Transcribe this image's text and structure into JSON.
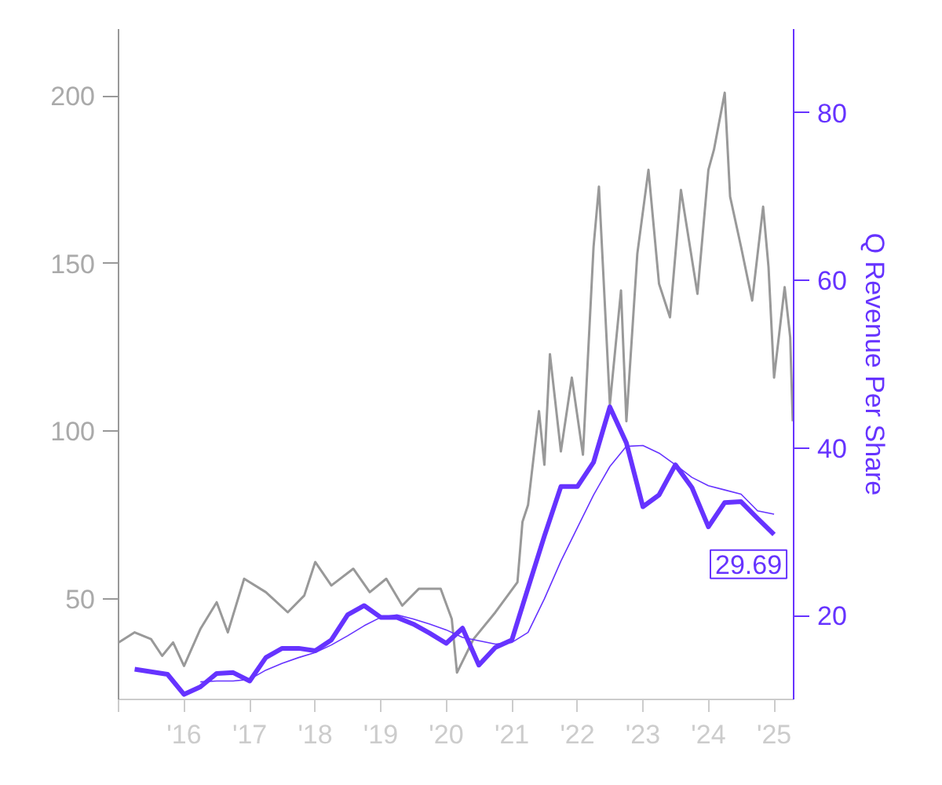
{
  "chart_data": {
    "type": "line",
    "y2label": "Q Revenue Per Share",
    "xlim": [
      "2015-01-01",
      "2025-04-20"
    ],
    "xticks": [
      {
        "value": "2015-01-01",
        "label": null
      },
      {
        "value": "2016-01-01",
        "label": "'16"
      },
      {
        "value": "2017-01-01",
        "label": "'17"
      },
      {
        "value": "2018-01-01",
        "label": "'18"
      },
      {
        "value": "2019-01-01",
        "label": "'19"
      },
      {
        "value": "2020-01-01",
        "label": "'20"
      },
      {
        "value": "2021-01-01",
        "label": "'21"
      },
      {
        "value": "2022-01-01",
        "label": "'22"
      },
      {
        "value": "2023-01-01",
        "label": "'23"
      },
      {
        "value": "2024-01-01",
        "label": "'24"
      },
      {
        "value": "2025-01-01",
        "label": "'25"
      }
    ],
    "ylim": [
      20,
      220
    ],
    "yticks": [
      50,
      100,
      150,
      200
    ],
    "y2lim": [
      10,
      90
    ],
    "y2ticks": [
      20,
      40,
      60,
      80
    ],
    "grid": false,
    "series": [
      {
        "color": "#999999",
        "x": [
          "2015-01",
          "2015-04",
          "2015-07",
          "2015-09",
          "2015-11",
          "2016-01",
          "2016-04",
          "2016-07",
          "2016-09",
          "2016-12",
          "2017-04",
          "2017-08",
          "2017-11",
          "2018-01",
          "2018-04",
          "2018-08",
          "2018-11",
          "2019-02",
          "2019-05",
          "2019-08",
          "2019-12",
          "2020-02",
          "2020-03",
          "2020-06",
          "2020-10",
          "2021-02",
          "2021-03",
          "2021-04",
          "2021-06",
          "2021-07",
          "2021-08",
          "2021-10",
          "2021-12",
          "2022-02",
          "2022-04",
          "2022-05",
          "2022-07",
          "2022-09",
          "2022-10",
          "2022-12",
          "2023-02",
          "2023-04",
          "2023-06",
          "2023-08",
          "2023-11",
          "2024-01",
          "2024-02",
          "2024-04",
          "2024-05",
          "2024-07",
          "2024-09",
          "2024-11",
          "2024-12",
          "2025-01",
          "2025-03",
          "2025-04-01",
          "2025-04-15"
        ],
        "values": [
          37,
          40,
          38,
          33,
          37,
          30,
          41,
          49,
          40,
          56,
          52,
          46,
          51,
          61,
          54,
          59,
          52,
          56,
          48,
          53,
          53,
          44,
          28,
          38,
          46,
          55,
          73,
          78,
          106,
          90,
          123,
          94,
          116,
          93,
          155,
          173,
          108,
          142,
          103,
          153,
          178,
          144,
          134,
          172,
          141,
          178,
          184,
          201,
          170,
          155,
          139,
          167,
          149,
          116,
          143,
          128,
          103
        ]
      },
      {
        "color": "#6633ff",
        "axis": "y2",
        "x": [
          "2015-04",
          "2015-07",
          "2015-10",
          "2016-01",
          "2016-04",
          "2016-07",
          "2016-10",
          "2017-01",
          "2017-04",
          "2017-07",
          "2017-10",
          "2018-01",
          "2018-04",
          "2018-07",
          "2018-10",
          "2019-01",
          "2019-04",
          "2019-07",
          "2019-10",
          "2020-01",
          "2020-04",
          "2020-07",
          "2020-10",
          "2021-01",
          "2021-04",
          "2021-07",
          "2021-10",
          "2022-01",
          "2022-04",
          "2022-07",
          "2022-10",
          "2023-01",
          "2023-04",
          "2023-07",
          "2023-10",
          "2024-01",
          "2024-04",
          "2024-07",
          "2024-10",
          "2025-01"
        ],
        "values": [
          13.6,
          13.3,
          13.0,
          10.6,
          11.5,
          13.1,
          13.2,
          12.2,
          15.0,
          16.1,
          16.1,
          15.8,
          17.1,
          20.1,
          21.2,
          19.8,
          19.8,
          19.0,
          17.9,
          16.7,
          18.5,
          14.1,
          16.2,
          17.1,
          23.3,
          29.5,
          35.4,
          35.4,
          38.3,
          44.9,
          40.6,
          33.0,
          34.4,
          38.0,
          35.3,
          30.6,
          33.5,
          33.6,
          31.6,
          29.69
        ]
      },
      {
        "color": "#6633ff",
        "axis": "y2",
        "x": [
          "2016-04",
          "2016-07",
          "2016-10",
          "2017-01",
          "2017-04",
          "2017-07",
          "2017-10",
          "2018-01",
          "2018-04",
          "2018-07",
          "2018-10",
          "2019-01",
          "2019-04",
          "2019-07",
          "2019-10",
          "2020-01",
          "2020-04",
          "2020-07",
          "2020-10",
          "2021-01",
          "2021-04",
          "2021-07",
          "2021-10",
          "2022-01",
          "2022-04",
          "2022-07",
          "2022-10",
          "2023-01",
          "2023-04",
          "2023-07",
          "2023-10",
          "2024-01",
          "2024-04",
          "2024-07",
          "2024-10",
          "2025-01"
        ],
        "values": [
          12.1,
          12.2,
          12.2,
          12.4,
          13.5,
          14.3,
          15.0,
          15.6,
          16.5,
          17.6,
          18.8,
          19.8,
          20.1,
          19.6,
          19.0,
          18.3,
          17.4,
          17.0,
          16.6,
          16.8,
          18.0,
          22.0,
          26.5,
          30.5,
          34.4,
          37.8,
          40.2,
          40.3,
          39.4,
          38.0,
          36.5,
          35.5,
          35.0,
          34.5,
          32.5,
          32.1
        ]
      }
    ],
    "annotations": [
      "29.69"
    ]
  }
}
